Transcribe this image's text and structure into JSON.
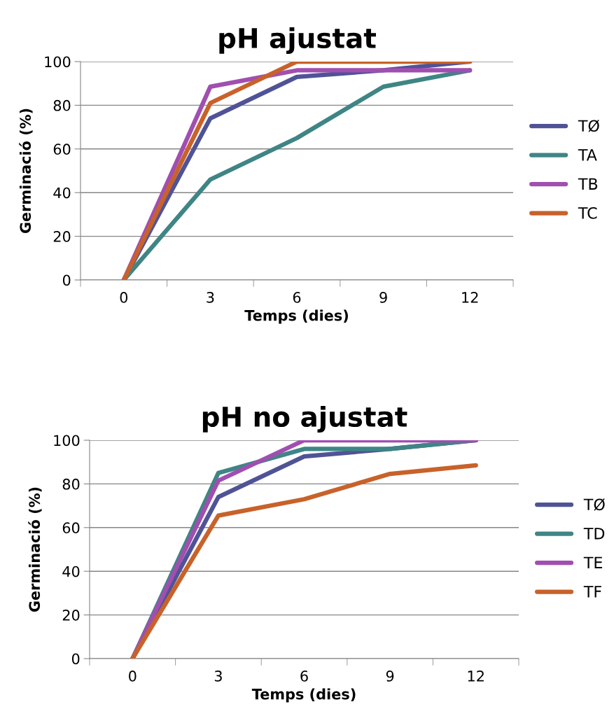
{
  "chart_data": [
    {
      "type": "line",
      "title": "pH ajustat",
      "xlabel": "Temps (dies)",
      "ylabel": "Germinació (%)",
      "categories": [
        "0",
        "3",
        "6",
        "9",
        "12"
      ],
      "ylim": [
        0,
        100
      ],
      "yticks": [
        0,
        20,
        40,
        60,
        80,
        100
      ],
      "grid": "y",
      "legend": "right",
      "marker": "none",
      "line_style": "solid",
      "series": [
        {
          "name": "TØ",
          "color": "#4f5396",
          "values": [
            0,
            74,
            93,
            96,
            100
          ]
        },
        {
          "name": "TA",
          "color": "#3f8585",
          "values": [
            0,
            46,
            65,
            88.5,
            96
          ]
        },
        {
          "name": "TB",
          "color": "#a04fb0",
          "values": [
            0,
            88.5,
            96,
            96,
            96
          ]
        },
        {
          "name": "TC",
          "color": "#c8622a",
          "values": [
            0,
            81,
            100,
            100,
            100
          ]
        }
      ]
    },
    {
      "type": "line",
      "title": "pH no ajustat",
      "xlabel": "Temps (dies)",
      "ylabel": "Germinació (%)",
      "categories": [
        "0",
        "3",
        "6",
        "9",
        "12"
      ],
      "ylim": [
        0,
        100
      ],
      "yticks": [
        0,
        20,
        40,
        60,
        80,
        100
      ],
      "grid": "y",
      "legend": "right",
      "marker": "none",
      "line_style": "solid",
      "series": [
        {
          "name": "TØ",
          "color": "#4f5396",
          "values": [
            0,
            74,
            92.6,
            96,
            100
          ]
        },
        {
          "name": "TD",
          "color": "#3f8585",
          "values": [
            0,
            85,
            96,
            96,
            100
          ]
        },
        {
          "name": "TE",
          "color": "#a04fb0",
          "values": [
            0,
            81.5,
            100,
            100,
            100
          ]
        },
        {
          "name": "TF",
          "color": "#c8622a",
          "values": [
            0,
            65.5,
            73,
            84.6,
            88.5
          ]
        }
      ]
    }
  ]
}
